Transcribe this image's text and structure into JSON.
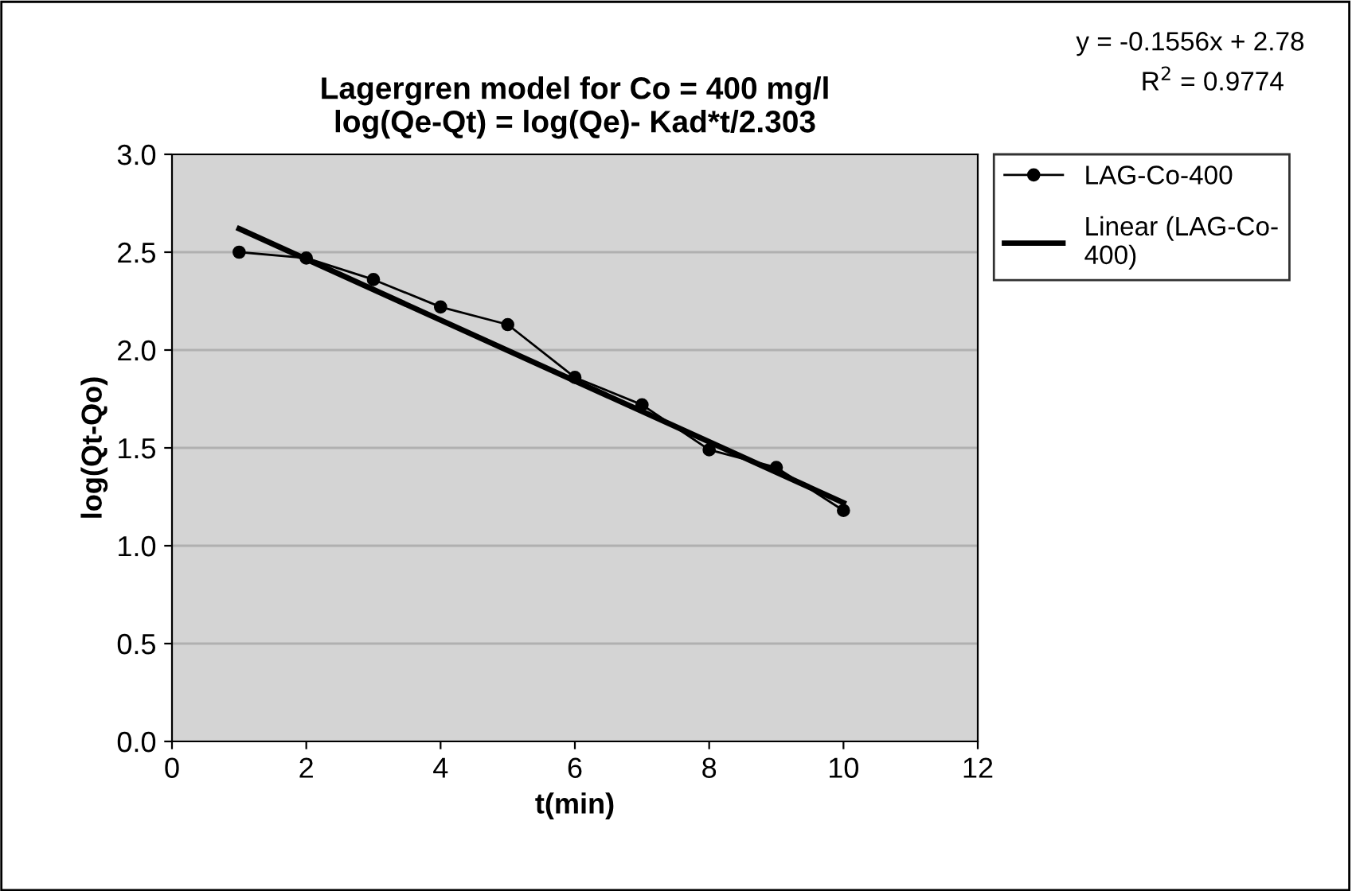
{
  "chart_data": {
    "type": "line",
    "title": "Lagergren model for Co = 400 mg/l\nlog(Qe-Qt) = log(Qe)- Kad*t/2.303",
    "xlabel": "t(min)",
    "ylabel": "log(Qt-Qo)",
    "x": [
      1,
      2,
      3,
      4,
      5,
      6,
      7,
      8,
      9,
      10
    ],
    "series": [
      {
        "name": "LAG-Co-400",
        "color": "#000000",
        "marker": "circle",
        "values": [
          2.5,
          2.47,
          2.36,
          2.22,
          2.13,
          1.86,
          1.72,
          1.49,
          1.4,
          1.18
        ]
      },
      {
        "name": "Linear (LAG-Co-\n400)",
        "type": "line",
        "color": "#000000",
        "marker": "none",
        "x": [
          1,
          10
        ],
        "values": [
          2.62,
          1.22
        ]
      }
    ],
    "annotations": [
      "y = -0.1556x + 2.78",
      "R$^{2}$ = 0.9774"
    ],
    "xlim": [
      0,
      12
    ],
    "xticks": [
      0,
      2,
      4,
      6,
      8,
      10,
      12
    ],
    "ylim": [
      0,
      3
    ],
    "yticks": [
      {
        "value": 0,
        "label": "0.0"
      },
      {
        "value": 0.5,
        "label": "0.5"
      },
      {
        "value": 1,
        "label": "1.0"
      },
      {
        "value": 1.5,
        "label": "1.5"
      },
      {
        "value": 2,
        "label": "2.0"
      },
      {
        "value": 2.5,
        "label": "2.5"
      },
      {
        "value": 3,
        "label": "3.0"
      }
    ],
    "grid": "y",
    "legend": "right"
  }
}
